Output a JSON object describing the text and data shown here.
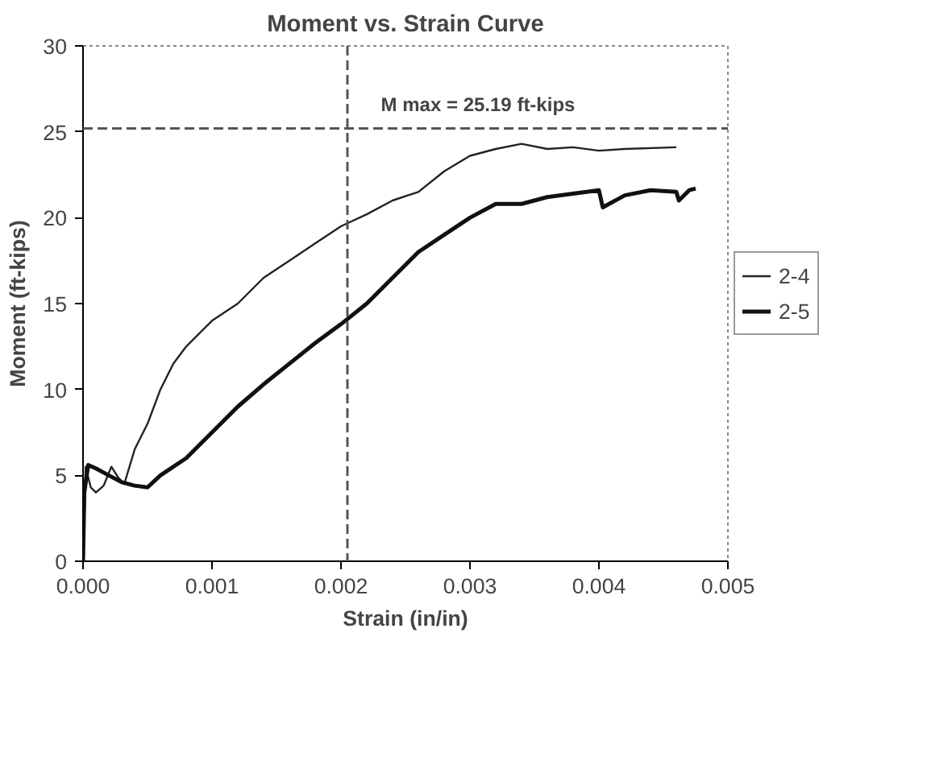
{
  "chart_data": {
    "type": "line",
    "title": "Moment vs. Strain Curve",
    "xlabel": "Strain (in/in)",
    "ylabel": "Moment (ft-kips)",
    "xlim": [
      0,
      0.005
    ],
    "xticks": [
      {
        "value": 0,
        "label": "0.000"
      },
      {
        "value": 0.001,
        "label": "0.001"
      },
      {
        "value": 0.002,
        "label": "0.002"
      },
      {
        "value": 0.003,
        "label": "0.003"
      },
      {
        "value": 0.004,
        "label": "0.004"
      },
      {
        "value": 0.005,
        "label": "0.005"
      }
    ],
    "ylim": [
      0,
      30
    ],
    "yticks": [
      0,
      5,
      10,
      15,
      20,
      25,
      30
    ],
    "grid": false,
    "legend": "right",
    "line_style": "solid",
    "ref_lines": [
      {
        "axis": "y",
        "value": 25.19,
        "line_style": "dashed",
        "color": "#555555",
        "label": "M max = 25.19 ft-kips"
      },
      {
        "axis": "x",
        "value": 0.00205,
        "line_style": "dashed",
        "color": "#555555"
      }
    ],
    "series": [
      {
        "name": "2-4",
        "color": "#222222",
        "x": [
          0,
          2e-05,
          6e-05,
          0.0001,
          0.00016,
          0.00022,
          0.00027,
          0.00032,
          0.0004,
          0.0005,
          0.0006,
          0.0007,
          0.0008,
          0.001,
          0.0012,
          0.0014,
          0.0016,
          0.0018,
          0.002,
          0.0022,
          0.0024,
          0.0026,
          0.0028,
          0.003,
          0.0032,
          0.0034,
          0.0036,
          0.0038,
          0.004,
          0.0042,
          0.0046
        ],
        "values": [
          0,
          5.5,
          4.3,
          4,
          4.4,
          5.5,
          4.9,
          4.5,
          6.5,
          8,
          10,
          11.5,
          12.5,
          14,
          15,
          16.5,
          17.5,
          18.5,
          19.5,
          20.2,
          21,
          21.5,
          22.7,
          23.6,
          24,
          24.3,
          24,
          24.1,
          23.9,
          24,
          24.1
        ]
      },
      {
        "name": "2-5",
        "color": "#111111",
        "x": [
          0,
          1e-05,
          4e-05,
          0.0001,
          0.0002,
          0.0003,
          0.0004,
          0.0005,
          0.0006,
          0.0008,
          0.001,
          0.0012,
          0.0014,
          0.0016,
          0.0018,
          0.002,
          0.0022,
          0.0024,
          0.0026,
          0.0028,
          0.003,
          0.0032,
          0.0034,
          0.0036,
          0.0038,
          0.004,
          0.00403,
          0.0042,
          0.0044,
          0.0046,
          0.00462,
          0.0047,
          0.00475
        ],
        "values": [
          0,
          4,
          5.6,
          5.4,
          5,
          4.6,
          4.4,
          4.3,
          5,
          6,
          7.5,
          9,
          10.3,
          11.5,
          12.7,
          13.8,
          15,
          16.5,
          18,
          19,
          20,
          20.8,
          20.8,
          21.2,
          21.4,
          21.6,
          20.6,
          21.3,
          21.6,
          21.5,
          21,
          21.6,
          21.7
        ]
      }
    ]
  }
}
